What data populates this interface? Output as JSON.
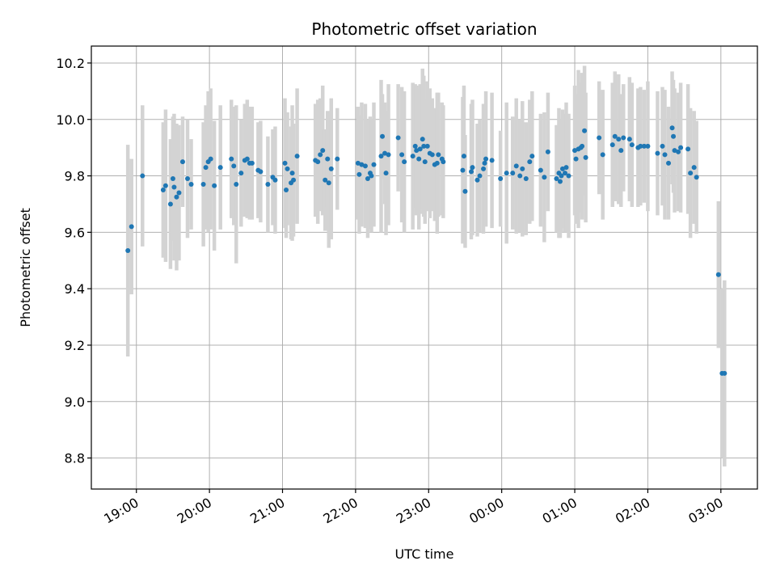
{
  "chart_data": {
    "type": "scatter",
    "title": "Photometric offset variation",
    "xlabel": "UTC time",
    "ylabel": "Photometric offset",
    "x_unit": "UTC time (HH:MM)",
    "x_ticks": [
      "19:00",
      "20:00",
      "21:00",
      "22:00",
      "23:00",
      "00:00",
      "01:00",
      "02:00",
      "03:00"
    ],
    "y_ticks": [
      "8.8",
      "9.0",
      "9.2",
      "9.4",
      "9.6",
      "9.8",
      "10.0",
      "10.2"
    ],
    "xlim": [
      "18:23",
      "03:30"
    ],
    "ylim": [
      8.69,
      10.26
    ],
    "grid": true,
    "colors": {
      "points": "#1f77b4",
      "errorbars": "#d3d3d3",
      "grid": "#b0b0b0"
    },
    "series": [
      {
        "points": [
          {
            "x": "18:53",
            "y": 9.535,
            "err": 0.375
          },
          {
            "x": "18:56",
            "y": 9.62,
            "err": 0.24
          },
          {
            "x": "19:05",
            "y": 9.8,
            "err": 0.25
          },
          {
            "x": "19:22",
            "y": 9.75,
            "err": 0.24
          },
          {
            "x": "19:24",
            "y": 9.765,
            "err": 0.27
          },
          {
            "x": "19:28",
            "y": 9.7,
            "err": 0.23
          },
          {
            "x": "19:30",
            "y": 9.79,
            "err": 0.22
          },
          {
            "x": "19:31",
            "y": 9.76,
            "err": 0.26
          },
          {
            "x": "19:33",
            "y": 9.725,
            "err": 0.26
          },
          {
            "x": "19:35",
            "y": 9.74,
            "err": 0.24
          },
          {
            "x": "19:38",
            "y": 9.85,
            "err": 0.16
          },
          {
            "x": "19:42",
            "y": 9.79,
            "err": 0.21
          },
          {
            "x": "19:45",
            "y": 9.77,
            "err": 0.16
          },
          {
            "x": "19:55",
            "y": 9.77,
            "err": 0.22
          },
          {
            "x": "19:57",
            "y": 9.83,
            "err": 0.22
          },
          {
            "x": "19:59",
            "y": 9.85,
            "err": 0.25
          },
          {
            "x": "20:01",
            "y": 9.86,
            "err": 0.25
          },
          {
            "x": "20:04",
            "y": 9.765,
            "err": 0.23
          },
          {
            "x": "20:09",
            "y": 9.83,
            "err": 0.22
          },
          {
            "x": "20:18",
            "y": 9.86,
            "err": 0.21
          },
          {
            "x": "20:20",
            "y": 9.835,
            "err": 0.21
          },
          {
            "x": "20:22",
            "y": 9.77,
            "err": 0.28
          },
          {
            "x": "20:26",
            "y": 9.81,
            "err": 0.19
          },
          {
            "x": "20:29",
            "y": 9.855,
            "err": 0.2
          },
          {
            "x": "20:31",
            "y": 9.86,
            "err": 0.21
          },
          {
            "x": "20:33",
            "y": 9.845,
            "err": 0.2
          },
          {
            "x": "20:35",
            "y": 9.845,
            "err": 0.2
          },
          {
            "x": "20:40",
            "y": 9.82,
            "err": 0.17
          },
          {
            "x": "20:42",
            "y": 9.815,
            "err": 0.18
          },
          {
            "x": "20:48",
            "y": 9.77,
            "err": 0.17
          },
          {
            "x": "20:52",
            "y": 9.795,
            "err": 0.17
          },
          {
            "x": "20:54",
            "y": 9.785,
            "err": 0.19
          },
          {
            "x": "21:02",
            "y": 9.845,
            "err": 0.23
          },
          {
            "x": "21:03",
            "y": 9.75,
            "err": 0.17
          },
          {
            "x": "21:04",
            "y": 9.825,
            "err": 0.2
          },
          {
            "x": "21:07",
            "y": 9.775,
            "err": 0.2
          },
          {
            "x": "21:08",
            "y": 9.81,
            "err": 0.24
          },
          {
            "x": "21:09",
            "y": 9.785,
            "err": 0.2
          },
          {
            "x": "21:12",
            "y": 9.87,
            "err": 0.24
          },
          {
            "x": "21:27",
            "y": 9.855,
            "err": 0.2
          },
          {
            "x": "21:29",
            "y": 9.85,
            "err": 0.22
          },
          {
            "x": "21:31",
            "y": 9.875,
            "err": 0.2
          },
          {
            "x": "21:33",
            "y": 9.89,
            "err": 0.23
          },
          {
            "x": "21:35",
            "y": 9.785,
            "err": 0.18
          },
          {
            "x": "21:37",
            "y": 9.86,
            "err": 0.17
          },
          {
            "x": "21:38",
            "y": 9.775,
            "err": 0.23
          },
          {
            "x": "21:40",
            "y": 9.825,
            "err": 0.25
          },
          {
            "x": "21:45",
            "y": 9.86,
            "err": 0.18
          },
          {
            "x": "22:02",
            "y": 9.845,
            "err": 0.2
          },
          {
            "x": "22:03",
            "y": 9.805,
            "err": 0.21
          },
          {
            "x": "22:05",
            "y": 9.84,
            "err": 0.22
          },
          {
            "x": "22:08",
            "y": 9.835,
            "err": 0.22
          },
          {
            "x": "22:10",
            "y": 9.79,
            "err": 0.21
          },
          {
            "x": "22:12",
            "y": 9.81,
            "err": 0.2
          },
          {
            "x": "22:13",
            "y": 9.8,
            "err": 0.2
          },
          {
            "x": "22:15",
            "y": 9.84,
            "err": 0.22
          },
          {
            "x": "22:21",
            "y": 9.87,
            "err": 0.27
          },
          {
            "x": "22:22",
            "y": 9.94,
            "err": 0.15
          },
          {
            "x": "22:24",
            "y": 9.88,
            "err": 0.18
          },
          {
            "x": "22:25",
            "y": 9.81,
            "err": 0.22
          },
          {
            "x": "22:27",
            "y": 9.875,
            "err": 0.25
          },
          {
            "x": "22:35",
            "y": 9.935,
            "err": 0.19
          },
          {
            "x": "22:38",
            "y": 9.875,
            "err": 0.24
          },
          {
            "x": "22:40",
            "y": 9.85,
            "err": 0.25
          },
          {
            "x": "22:47",
            "y": 9.87,
            "err": 0.26
          },
          {
            "x": "22:49",
            "y": 9.905,
            "err": 0.22
          },
          {
            "x": "22:50",
            "y": 9.89,
            "err": 0.23
          },
          {
            "x": "22:52",
            "y": 9.86,
            "err": 0.25
          },
          {
            "x": "22:53",
            "y": 9.895,
            "err": 0.23
          },
          {
            "x": "22:55",
            "y": 9.93,
            "err": 0.25
          },
          {
            "x": "22:56",
            "y": 9.905,
            "err": 0.25
          },
          {
            "x": "22:57",
            "y": 9.85,
            "err": 0.22
          },
          {
            "x": "22:59",
            "y": 9.905,
            "err": 0.23
          },
          {
            "x": "23:01",
            "y": 9.88,
            "err": 0.23
          },
          {
            "x": "23:03",
            "y": 9.875,
            "err": 0.2
          },
          {
            "x": "23:05",
            "y": 9.84,
            "err": 0.2
          },
          {
            "x": "23:07",
            "y": 9.845,
            "err": 0.25
          },
          {
            "x": "23:08",
            "y": 9.875,
            "err": 0.22
          },
          {
            "x": "23:11",
            "y": 9.86,
            "err": 0.2
          },
          {
            "x": "23:12",
            "y": 9.85,
            "err": 0.2
          },
          {
            "x": "23:28",
            "y": 9.82,
            "err": 0.26
          },
          {
            "x": "23:29",
            "y": 9.87,
            "err": 0.25
          },
          {
            "x": "23:30",
            "y": 9.745,
            "err": 0.2
          },
          {
            "x": "23:35",
            "y": 9.815,
            "err": 0.24
          },
          {
            "x": "23:36",
            "y": 9.83,
            "err": 0.24
          },
          {
            "x": "23:40",
            "y": 9.785,
            "err": 0.2
          },
          {
            "x": "23:42",
            "y": 9.8,
            "err": 0.2
          },
          {
            "x": "23:45",
            "y": 9.825,
            "err": 0.23
          },
          {
            "x": "23:46",
            "y": 9.845,
            "err": 0.21
          },
          {
            "x": "23:47",
            "y": 9.86,
            "err": 0.24
          },
          {
            "x": "23:52",
            "y": 9.855,
            "err": 0.24
          },
          {
            "x": "23:59",
            "y": 9.79,
            "err": 0.17
          },
          {
            "x": "00:04",
            "y": 9.81,
            "err": 0.25
          },
          {
            "x": "00:09",
            "y": 9.81,
            "err": 0.2
          },
          {
            "x": "00:12",
            "y": 9.835,
            "err": 0.24
          },
          {
            "x": "00:15",
            "y": 9.8,
            "err": 0.2
          },
          {
            "x": "00:17",
            "y": 9.825,
            "err": 0.24
          },
          {
            "x": "00:20",
            "y": 9.79,
            "err": 0.2
          },
          {
            "x": "00:23",
            "y": 9.85,
            "err": 0.22
          },
          {
            "x": "00:25",
            "y": 9.87,
            "err": 0.23
          },
          {
            "x": "00:32",
            "y": 9.82,
            "err": 0.2
          },
          {
            "x": "00:35",
            "y": 9.795,
            "err": 0.23
          },
          {
            "x": "00:38",
            "y": 9.885,
            "err": 0.21
          },
          {
            "x": "00:45",
            "y": 9.79,
            "err": 0.19
          },
          {
            "x": "00:47",
            "y": 9.81,
            "err": 0.23
          },
          {
            "x": "00:48",
            "y": 9.78,
            "err": 0.2
          },
          {
            "x": "00:49",
            "y": 9.8,
            "err": 0.2
          },
          {
            "x": "00:50",
            "y": 9.825,
            "err": 0.21
          },
          {
            "x": "00:52",
            "y": 9.81,
            "err": 0.21
          },
          {
            "x": "00:53",
            "y": 9.83,
            "err": 0.23
          },
          {
            "x": "00:55",
            "y": 9.8,
            "err": 0.22
          },
          {
            "x": "01:00",
            "y": 9.89,
            "err": 0.23
          },
          {
            "x": "01:01",
            "y": 9.86,
            "err": 0.23
          },
          {
            "x": "01:03",
            "y": 9.895,
            "err": 0.28
          },
          {
            "x": "01:05",
            "y": 9.9,
            "err": 0.23
          },
          {
            "x": "01:06",
            "y": 9.905,
            "err": 0.26
          },
          {
            "x": "01:08",
            "y": 9.96,
            "err": 0.23
          },
          {
            "x": "01:09",
            "y": 9.865,
            "err": 0.23
          },
          {
            "x": "01:20",
            "y": 9.935,
            "err": 0.2
          },
          {
            "x": "01:23",
            "y": 9.875,
            "err": 0.23
          },
          {
            "x": "01:31",
            "y": 9.91,
            "err": 0.22
          },
          {
            "x": "01:33",
            "y": 9.94,
            "err": 0.23
          },
          {
            "x": "01:36",
            "y": 9.93,
            "err": 0.23
          },
          {
            "x": "01:38",
            "y": 9.89,
            "err": 0.2
          },
          {
            "x": "01:40",
            "y": 9.935,
            "err": 0.19
          },
          {
            "x": "01:45",
            "y": 9.93,
            "err": 0.22
          },
          {
            "x": "01:47",
            "y": 9.91,
            "err": 0.22
          },
          {
            "x": "01:52",
            "y": 9.9,
            "err": 0.21
          },
          {
            "x": "01:54",
            "y": 9.905,
            "err": 0.21
          },
          {
            "x": "01:57",
            "y": 9.905,
            "err": 0.2
          },
          {
            "x": "02:00",
            "y": 9.905,
            "err": 0.23
          },
          {
            "x": "02:08",
            "y": 9.88,
            "err": 0.22
          },
          {
            "x": "02:12",
            "y": 9.905,
            "err": 0.21
          },
          {
            "x": "02:14",
            "y": 9.875,
            "err": 0.23
          },
          {
            "x": "02:17",
            "y": 9.845,
            "err": 0.2
          },
          {
            "x": "02:20",
            "y": 9.97,
            "err": 0.2
          },
          {
            "x": "02:21",
            "y": 9.94,
            "err": 0.2
          },
          {
            "x": "02:22",
            "y": 9.89,
            "err": 0.22
          },
          {
            "x": "02:25",
            "y": 9.885,
            "err": 0.21
          },
          {
            "x": "02:27",
            "y": 9.9,
            "err": 0.23
          },
          {
            "x": "02:33",
            "y": 9.895,
            "err": 0.23
          },
          {
            "x": "02:35",
            "y": 9.81,
            "err": 0.23
          },
          {
            "x": "02:38",
            "y": 9.83,
            "err": 0.2
          },
          {
            "x": "02:40",
            "y": 9.795,
            "err": 0.2
          },
          {
            "x": "02:58",
            "y": 9.45,
            "err": 0.26
          },
          {
            "x": "03:01",
            "y": 9.1,
            "err": 0.3
          },
          {
            "x": "03:03",
            "y": 9.1,
            "err": 0.33
          }
        ]
      }
    ]
  }
}
